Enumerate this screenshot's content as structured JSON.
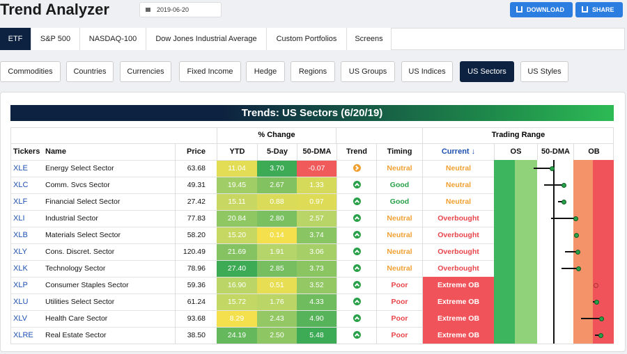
{
  "header": {
    "title": "Trend Analyzer",
    "date": "2019-06-20",
    "buttons": [
      "DOWNLOAD",
      "SHARE"
    ]
  },
  "tabs": {
    "items": [
      "ETF",
      "S&P 500",
      "NASDAQ-100",
      "Dow Jones Industrial Average",
      "Custom Portfolios",
      "Screens"
    ],
    "selected": 0
  },
  "subtabs": {
    "items": [
      "Commodities",
      "Countries",
      "Currencies",
      "Fixed Income",
      "Hedge",
      "Regions",
      "US Groups",
      "US Indices",
      "US Sectors",
      "US Styles"
    ],
    "selected": 8
  },
  "table": {
    "title": "Trends: US Sectors (6/20/19)",
    "group_headers": [
      "% Change",
      "Trading Range"
    ],
    "columns": [
      "Tickers",
      "Name",
      "Price",
      "YTD",
      "5-Day",
      "50-DMA",
      "Trend",
      "Timing",
      "Current ↓",
      "OS",
      "50-DMA",
      "OB"
    ],
    "range_lim": [
      -3,
      3
    ],
    "rows": [
      {
        "ticker": "XLE",
        "name": "Energy Select Sector",
        "price": "63.68",
        "ytd": "11.04",
        "day5": "3.70",
        "dma50": "-0.07",
        "trend": "sideways",
        "timing": "Neutral",
        "timing_color": "#f0a030",
        "current": "Neutral",
        "current_color": "#f0a030",
        "current_fill": null,
        "position": -0.07,
        "prior": -1.0
      },
      {
        "ticker": "XLC",
        "name": "Comm. Svcs Sector",
        "price": "49.31",
        "ytd": "19.45",
        "day5": "2.67",
        "dma50": "1.33",
        "trend": "up",
        "timing": "Good",
        "timing_color": "#2aa04a",
        "current": "Neutral",
        "current_color": "#f0a030",
        "current_fill": null,
        "position": 0.5,
        "prior": -0.5
      },
      {
        "ticker": "XLF",
        "name": "Financial Select Sector",
        "price": "27.42",
        "ytd": "15.11",
        "day5": "0.88",
        "dma50": "0.97",
        "trend": "up",
        "timing": "Good",
        "timing_color": "#2aa04a",
        "current": "Neutral",
        "current_color": "#f0a030",
        "current_fill": null,
        "position": 0.5,
        "prior": 0.2
      },
      {
        "ticker": "XLI",
        "name": "Industrial Sector",
        "price": "77.83",
        "ytd": "20.84",
        "day5": "2.80",
        "dma50": "2.57",
        "trend": "up",
        "timing": "Neutral",
        "timing_color": "#f0a030",
        "current": "Overbought",
        "current_color": "#e8454a",
        "current_fill": null,
        "position": 1.1,
        "prior": -0.15
      },
      {
        "ticker": "XLB",
        "name": "Materials Select Sector",
        "price": "58.20",
        "ytd": "15.20",
        "day5": "0.14",
        "dma50": "3.74",
        "trend": "up",
        "timing": "Neutral",
        "timing_color": "#f0a030",
        "current": "Overbought",
        "current_color": "#e8454a",
        "current_fill": null,
        "position": 1.15,
        "prior": 1.15
      },
      {
        "ticker": "XLY",
        "name": "Cons. Discret. Sector",
        "price": "120.49",
        "ytd": "21.69",
        "day5": "1.91",
        "dma50": "3.06",
        "trend": "up",
        "timing": "Neutral",
        "timing_color": "#f0a030",
        "current": "Overbought",
        "current_color": "#e8454a",
        "current_fill": null,
        "position": 1.2,
        "prior": 0.55
      },
      {
        "ticker": "XLK",
        "name": "Technology Sector",
        "price": "78.96",
        "ytd": "27.40",
        "day5": "2.85",
        "dma50": "3.73",
        "trend": "up",
        "timing": "Neutral",
        "timing_color": "#f0a030",
        "current": "Overbought",
        "current_color": "#e8454a",
        "current_fill": null,
        "position": 1.25,
        "prior": 0.4
      },
      {
        "ticker": "XLP",
        "name": "Consumer Staples Sector",
        "price": "59.36",
        "ytd": "16.90",
        "day5": "0.51",
        "dma50": "3.52",
        "trend": "up",
        "timing": "Poor",
        "timing_color": "#e8454a",
        "current": "Extreme OB",
        "current_color": "#ffffff",
        "current_fill": "#f0545a",
        "position": 2.1,
        "prior": null
      },
      {
        "ticker": "XLU",
        "name": "Utilities Select Sector",
        "price": "61.24",
        "ytd": "15.72",
        "day5": "1.76",
        "dma50": "4.33",
        "trend": "up",
        "timing": "Poor",
        "timing_color": "#e8454a",
        "current": "Extreme OB",
        "current_color": "#ffffff",
        "current_fill": "#f0545a",
        "position": 2.15,
        "prior": 1.95
      },
      {
        "ticker": "XLV",
        "name": "Health Care Sector",
        "price": "93.68",
        "ytd": "8.29",
        "day5": "2.43",
        "dma50": "4.90",
        "trend": "up",
        "timing": "Poor",
        "timing_color": "#e8454a",
        "current": "Extreme OB",
        "current_color": "#ffffff",
        "current_fill": "#f0545a",
        "position": 2.4,
        "prior": 1.35
      },
      {
        "ticker": "XLRE",
        "name": "Real Estate Sector",
        "price": "38.50",
        "ytd": "24.19",
        "day5": "2.50",
        "dma50": "5.48",
        "trend": "up",
        "timing": "Poor",
        "timing_color": "#e8454a",
        "current": "Extreme OB",
        "current_color": "#ffffff",
        "current_fill": "#f0545a",
        "position": 2.35,
        "prior": 2.05
      }
    ]
  }
}
